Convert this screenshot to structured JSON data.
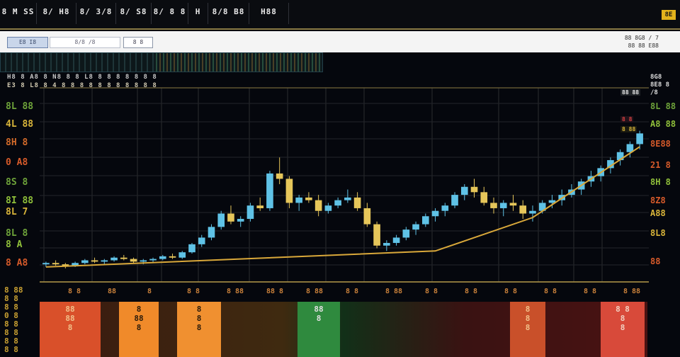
{
  "stats": [
    "8 M SS",
    "8/ H8",
    "8/ 3/8",
    "8/ S8",
    "8/ 8 8",
    "H",
    "8/8 B8",
    "H88"
  ],
  "brand": "8E",
  "toolbar": {
    "tab": "E8 I8",
    "search_value": "8/8 /8",
    "button": "8 8",
    "info_line1": "88 8G8 / 7",
    "info_line2": "88 88 E88"
  },
  "ticker": {
    "line1": "H8 8 A8 8 N8 8 8 L8 8 8 8 8 8 8 8",
    "line2": "E3 8 L8 8 4 8 8 8 8 8 8 8 8 8 8 8"
  },
  "right_header": {
    "line1": "8G8",
    "line2": "8E8 8 /8"
  },
  "left_labels": [
    {
      "text": "8L 88",
      "color": "#6ea33a"
    },
    {
      "text": "4L 88",
      "color": "#d9b53a"
    },
    {
      "text": "8H 8",
      "color": "#d26a2a"
    },
    {
      "text": "0 A8",
      "color": "#d65a2a"
    },
    {
      "text": "8S 8",
      "color": "#6ea33a"
    },
    {
      "text": "8I 88",
      "color": "#8fbf3a"
    },
    {
      "text": "8L 7",
      "color": "#d9b53a"
    },
    {
      "text": "8L 8",
      "color": "#6ea33a"
    },
    {
      "text": "8 A",
      "color": "#8fbf3a"
    },
    {
      "text": "8 A8",
      "color": "#d65a2a"
    }
  ],
  "right_labels": [
    {
      "text": "8L 88",
      "color": "#6ea33a"
    },
    {
      "text": "A8 88",
      "color": "#8fbf3a"
    },
    {
      "text": "8E88",
      "color": "#d65a2a"
    },
    {
      "text": "21 8",
      "color": "#d65a2a"
    },
    {
      "text": "8H 8",
      "color": "#8fbf3a"
    },
    {
      "text": "8Z8",
      "color": "#d65a2a"
    },
    {
      "text": "A88",
      "color": "#d9b53a"
    },
    {
      "text": "8L8",
      "color": "#d9b53a"
    },
    {
      "text": "88",
      "color": "#d65a2a"
    }
  ],
  "indicator_tags": [
    {
      "text": "88 88",
      "color": "#e8e8e8",
      "bg": "#202428"
    },
    {
      "text": "8 8",
      "color": "#d84040",
      "bg": "#20121a"
    },
    {
      "text": "8 88",
      "color": "#d9b53a",
      "bg": "#1a1a10"
    }
  ],
  "left_col": [
    "8 88",
    "8 8",
    "8 8",
    "0 8",
    "8 8",
    "8 8",
    "8 8",
    "8 8"
  ],
  "bottom_panels": [
    {
      "text": [
        "88",
        "88",
        "8"
      ],
      "color": "#d9502a",
      "textcolor": "#f1c08a"
    },
    {
      "text": [
        "8",
        "88",
        "8"
      ],
      "color": "#f08a2a",
      "textcolor": "#2a1a0a"
    },
    {
      "text": [
        "8",
        "8",
        "8"
      ],
      "color": "#f09030",
      "textcolor": "#2a1a0a"
    },
    {
      "text": [
        "88",
        "8"
      ],
      "color": "#2f8a3e",
      "textcolor": "#e0e0e0"
    },
    {
      "text": [
        "8",
        "8",
        "8"
      ],
      "color": "#c9502a",
      "textcolor": "#f1c08a"
    },
    {
      "text": [
        "8 8",
        "8",
        "8"
      ],
      "color": "#d84a3a",
      "textcolor": "#f1d0c0"
    }
  ],
  "bottom_axis": [
    "8 8",
    "88",
    "8",
    "8 8",
    "8 88",
    "88 8",
    "8 88",
    "8 8",
    "8 88",
    "8 8",
    "8 8",
    "8 8",
    "8 8",
    "8 8",
    "8 88"
  ],
  "chart_data": {
    "type": "candlestick",
    "ohlc": [
      [
        40,
        42,
        38,
        41
      ],
      [
        41,
        43,
        39,
        40
      ],
      [
        40,
        41,
        37,
        39
      ],
      [
        39,
        42,
        38,
        41
      ],
      [
        41,
        44,
        40,
        43
      ],
      [
        43,
        45,
        41,
        42
      ],
      [
        42,
        44,
        40,
        43
      ],
      [
        43,
        46,
        42,
        45
      ],
      [
        45,
        47,
        43,
        44
      ],
      [
        44,
        45,
        41,
        42
      ],
      [
        42,
        44,
        40,
        43
      ],
      [
        43,
        45,
        41,
        44
      ],
      [
        44,
        47,
        43,
        46
      ],
      [
        46,
        48,
        44,
        45
      ],
      [
        45,
        50,
        44,
        49
      ],
      [
        49,
        56,
        48,
        55
      ],
      [
        55,
        62,
        53,
        60
      ],
      [
        60,
        70,
        58,
        68
      ],
      [
        68,
        80,
        66,
        78
      ],
      [
        78,
        84,
        70,
        72
      ],
      [
        72,
        76,
        68,
        74
      ],
      [
        74,
        86,
        72,
        84
      ],
      [
        84,
        90,
        80,
        82
      ],
      [
        82,
        110,
        80,
        108
      ],
      [
        108,
        120,
        100,
        104
      ],
      [
        104,
        106,
        82,
        86
      ],
      [
        86,
        92,
        80,
        90
      ],
      [
        90,
        94,
        86,
        88
      ],
      [
        88,
        92,
        76,
        80
      ],
      [
        80,
        86,
        78,
        84
      ],
      [
        84,
        90,
        82,
        88
      ],
      [
        88,
        96,
        86,
        90
      ],
      [
        90,
        94,
        80,
        82
      ],
      [
        82,
        86,
        68,
        70
      ],
      [
        70,
        72,
        52,
        54
      ],
      [
        54,
        58,
        50,
        56
      ],
      [
        56,
        62,
        54,
        60
      ],
      [
        60,
        68,
        58,
        66
      ],
      [
        66,
        72,
        62,
        70
      ],
      [
        70,
        78,
        68,
        76
      ],
      [
        76,
        82,
        72,
        80
      ],
      [
        80,
        86,
        76,
        84
      ],
      [
        84,
        94,
        82,
        92
      ],
      [
        92,
        100,
        88,
        98
      ],
      [
        98,
        104,
        90,
        94
      ],
      [
        94,
        98,
        84,
        86
      ],
      [
        86,
        90,
        78,
        82
      ],
      [
        82,
        88,
        76,
        86
      ],
      [
        86,
        92,
        80,
        84
      ],
      [
        84,
        88,
        74,
        78
      ],
      [
        78,
        84,
        72,
        80
      ],
      [
        80,
        88,
        78,
        86
      ],
      [
        86,
        92,
        82,
        88
      ],
      [
        88,
        96,
        84,
        92
      ],
      [
        92,
        100,
        90,
        96
      ],
      [
        96,
        104,
        92,
        102
      ],
      [
        102,
        110,
        98,
        106
      ],
      [
        106,
        114,
        102,
        112
      ],
      [
        112,
        120,
        108,
        118
      ],
      [
        118,
        126,
        114,
        124
      ],
      [
        124,
        132,
        120,
        130
      ],
      [
        130,
        140,
        126,
        138
      ]
    ],
    "trend": [
      [
        0,
        38
      ],
      [
        40,
        50
      ],
      [
        50,
        75
      ],
      [
        61,
        128
      ]
    ],
    "ylim": [
      30,
      170
    ]
  }
}
